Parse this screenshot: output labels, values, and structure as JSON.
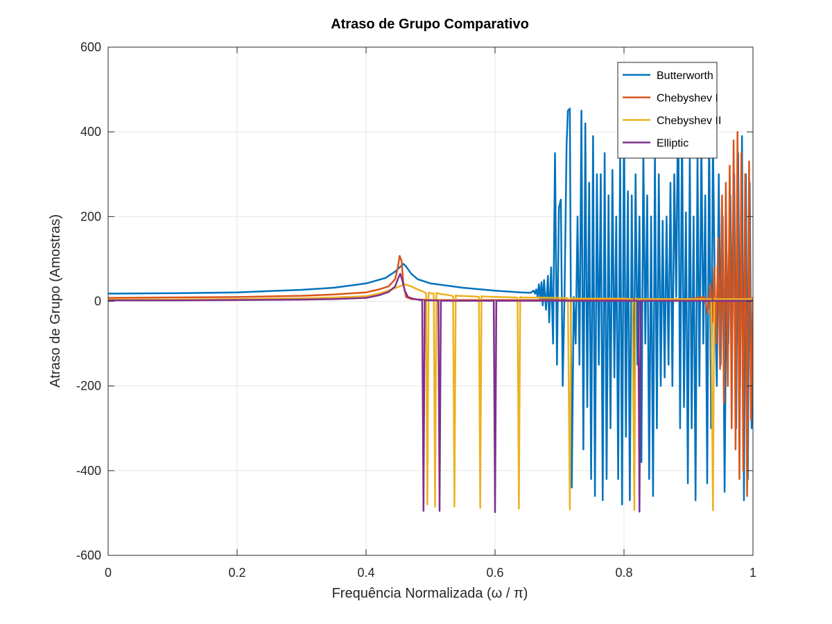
{
  "chart_data": {
    "type": "line",
    "title": "Atraso de Grupo Comparativo",
    "xlabel": "Frequência Normalizada (ω / π)",
    "ylabel": "Atraso de Grupo (Amostras)",
    "xlim": [
      0,
      1
    ],
    "ylim": [
      -600,
      600
    ],
    "x_ticks": [
      0,
      0.2,
      0.4,
      0.6,
      0.8,
      1
    ],
    "x_tick_labels": [
      "0",
      "0.2",
      "0.4",
      "0.6",
      "0.8",
      "1"
    ],
    "y_ticks": [
      -600,
      -400,
      -200,
      0,
      200,
      400,
      600
    ],
    "y_tick_labels": [
      "-600",
      "-400",
      "-200",
      "0",
      "200",
      "400",
      "600"
    ],
    "grid": true,
    "legend_position": "top-right",
    "series": [
      {
        "name": "Butterworth",
        "color": "#0072BD",
        "x": [
          0,
          0.1,
          0.2,
          0.3,
          0.35,
          0.4,
          0.43,
          0.445,
          0.452,
          0.458,
          0.462,
          0.47,
          0.48,
          0.5,
          0.55,
          0.6,
          0.64,
          0.655,
          0.66,
          0.662,
          0.664,
          0.666,
          0.668,
          0.67,
          0.672,
          0.674,
          0.676,
          0.679,
          0.682,
          0.684,
          0.687,
          0.69,
          0.693,
          0.696,
          0.699,
          0.702,
          0.705,
          0.708,
          0.711,
          0.713,
          0.716,
          0.719,
          0.722,
          0.725,
          0.728,
          0.731,
          0.734,
          0.737,
          0.74,
          0.743,
          0.746,
          0.749,
          0.752,
          0.755,
          0.758,
          0.761,
          0.764,
          0.767,
          0.77,
          0.773,
          0.776,
          0.779,
          0.782,
          0.785,
          0.788,
          0.791,
          0.794,
          0.797,
          0.8,
          0.803,
          0.806,
          0.809,
          0.812,
          0.815,
          0.818,
          0.821,
          0.824,
          0.827,
          0.83,
          0.833,
          0.836,
          0.839,
          0.842,
          0.845,
          0.848,
          0.851,
          0.854,
          0.857,
          0.86,
          0.863,
          0.866,
          0.869,
          0.872,
          0.875,
          0.878,
          0.881,
          0.884,
          0.887,
          0.89,
          0.893,
          0.896,
          0.899,
          0.902,
          0.905,
          0.908,
          0.911,
          0.914,
          0.917,
          0.92,
          0.923,
          0.926,
          0.929,
          0.932,
          0.935,
          0.938,
          0.941,
          0.944,
          0.947,
          0.95,
          0.953,
          0.956,
          0.959,
          0.962,
          0.965,
          0.968,
          0.971,
          0.974,
          0.977,
          0.98,
          0.983,
          0.986,
          0.989,
          0.992,
          0.995,
          0.998,
          1.0
        ],
        "y": [
          18,
          19,
          21,
          27,
          32,
          42,
          55,
          70,
          80,
          88,
          82,
          65,
          52,
          42,
          32,
          25,
          21,
          20,
          25,
          18,
          28,
          10,
          40,
          5,
          45,
          -10,
          50,
          -20,
          60,
          -50,
          80,
          -100,
          350,
          -150,
          220,
          240,
          -200,
          30,
          370,
          450,
          455,
          -440,
          10,
          -100,
          200,
          -150,
          450,
          -350,
          420,
          -250,
          280,
          -420,
          390,
          -460,
          300,
          -150,
          300,
          -470,
          350,
          -420,
          250,
          -300,
          310,
          -180,
          200,
          -420,
          350,
          -480,
          440,
          -320,
          260,
          -470,
          250,
          -300,
          300,
          -150,
          200,
          -380,
          360,
          -100,
          250,
          -420,
          200,
          -460,
          350,
          -300,
          300,
          -200,
          190,
          -180,
          200,
          -150,
          280,
          -200,
          300,
          10,
          500,
          -300,
          420,
          -250,
          210,
          -430,
          350,
          -300,
          200,
          -470,
          350,
          -200,
          380,
          -100,
          250,
          -430,
          420,
          -300,
          380,
          10,
          -200,
          300,
          -150,
          200,
          -450,
          120,
          -100,
          250,
          -80,
          300,
          -300,
          350,
          -200,
          390,
          -470,
          300,
          -420,
          280,
          -300,
          10
        ]
      },
      {
        "name": "Chebyshev I",
        "color": "#D95319",
        "x": [
          0,
          0.1,
          0.2,
          0.3,
          0.35,
          0.4,
          0.42,
          0.435,
          0.445,
          0.449,
          0.452,
          0.455,
          0.458,
          0.462,
          0.47,
          0.5,
          0.6,
          0.7,
          0.8,
          0.9,
          0.925,
          0.93,
          0.934,
          0.937,
          0.94,
          0.943,
          0.946,
          0.949,
          0.952,
          0.955,
          0.958,
          0.961,
          0.964,
          0.967,
          0.97,
          0.973,
          0.976,
          0.979,
          0.982,
          0.985,
          0.988,
          0.991,
          0.994,
          0.997,
          1.0
        ],
        "y": [
          8,
          9,
          10,
          13,
          16,
          21,
          28,
          35,
          52,
          78,
          107,
          95,
          40,
          10,
          5,
          3,
          3,
          3,
          3,
          5,
          10,
          -30,
          40,
          -50,
          80,
          -100,
          150,
          -160,
          250,
          -240,
          280,
          -200,
          320,
          -300,
          380,
          -350,
          400,
          -420,
          350,
          -400,
          300,
          -460,
          330,
          -280,
          10
        ]
      },
      {
        "name": "Chebyshev II",
        "color": "#EDB120",
        "x": [
          0,
          0.1,
          0.2,
          0.3,
          0.35,
          0.4,
          0.42,
          0.44,
          0.46,
          0.47,
          0.48,
          0.49,
          0.493,
          0.495,
          0.497,
          0.5,
          0.505,
          0.507,
          0.509,
          0.512,
          0.53,
          0.535,
          0.537,
          0.539,
          0.542,
          0.572,
          0.575,
          0.577,
          0.579,
          0.582,
          0.632,
          0.635,
          0.637,
          0.639,
          0.642,
          0.7,
          0.713,
          0.716,
          0.718,
          0.72,
          0.723,
          0.8,
          0.813,
          0.816,
          0.818,
          0.82,
          0.823,
          0.9,
          0.935,
          0.938,
          0.94,
          0.942,
          0.945,
          1.0
        ],
        "y": [
          4,
          4,
          5,
          7,
          9,
          12,
          18,
          28,
          40,
          35,
          28,
          22,
          18,
          -480,
          20,
          19,
          18,
          -485,
          20,
          18,
          14,
          12,
          -485,
          14,
          13,
          11,
          10,
          -488,
          12,
          11,
          9,
          8,
          -490,
          10,
          9,
          8,
          7,
          -492,
          8,
          7,
          6,
          6,
          5,
          -493,
          7,
          6,
          5,
          5,
          5,
          -494,
          6,
          5,
          5,
          5
        ]
      },
      {
        "name": "Elliptic",
        "color": "#7E2F8E",
        "x": [
          0,
          0.1,
          0.2,
          0.3,
          0.35,
          0.4,
          0.42,
          0.435,
          0.445,
          0.45,
          0.453,
          0.456,
          0.46,
          0.465,
          0.475,
          0.485,
          0.487,
          0.489,
          0.491,
          0.493,
          0.51,
          0.512,
          0.514,
          0.516,
          0.518,
          0.596,
          0.598,
          0.6,
          0.602,
          0.604,
          0.7,
          0.8,
          0.82,
          0.822,
          0.824,
          0.826,
          0.828,
          0.9,
          1.0
        ],
        "y": [
          2,
          2,
          3,
          4,
          5,
          8,
          14,
          22,
          35,
          55,
          65,
          50,
          25,
          10,
          5,
          3,
          2,
          -495,
          2,
          2,
          2,
          1,
          -495,
          1,
          1,
          1,
          1,
          -498,
          1,
          1,
          1,
          1,
          1,
          1,
          -497,
          1,
          1,
          1,
          1
        ]
      }
    ]
  }
}
